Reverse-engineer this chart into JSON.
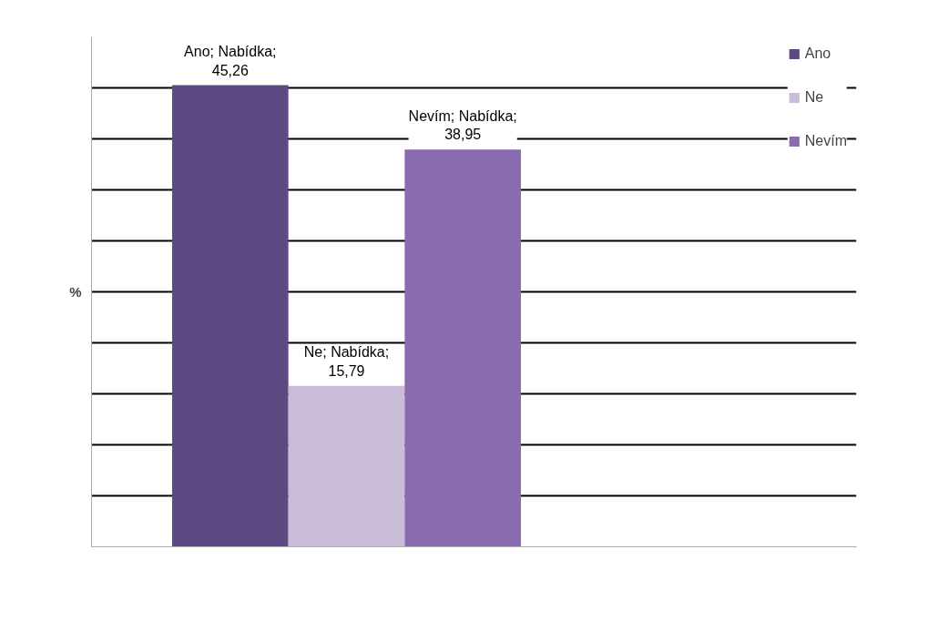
{
  "chart_data": {
    "type": "bar",
    "ylabel": "%",
    "categories": [
      null
    ],
    "ylim": [
      0,
      50
    ],
    "yticks": [
      {
        "value": 0,
        "label": null
      },
      {
        "value": 5,
        "label": null
      },
      {
        "value": 10,
        "label": null
      },
      {
        "value": 15,
        "label": null
      },
      {
        "value": 20,
        "label": null
      },
      {
        "value": 25,
        "label": null
      },
      {
        "value": 30,
        "label": null
      },
      {
        "value": 35,
        "label": null
      },
      {
        "value": 40,
        "label": null
      },
      {
        "value": 45,
        "label": null
      }
    ],
    "grid": "y",
    "legend": "top right",
    "series": [
      {
        "name": "Ano",
        "color": "#5e4a82",
        "values": [
          45.26
        ],
        "value_labels": [
          "Ano; Nabídka;\n45,26"
        ]
      },
      {
        "name": "Ne",
        "color": "#c8bcd8",
        "values": [
          15.79
        ],
        "value_labels": [
          "Ne; Nabídka;\n15,79"
        ]
      },
      {
        "name": "Nevím",
        "color": "#8a6bb0",
        "values": [
          38.95
        ],
        "value_labels": [
          "Nevím; Nabídka;\n38,95"
        ]
      }
    ]
  }
}
